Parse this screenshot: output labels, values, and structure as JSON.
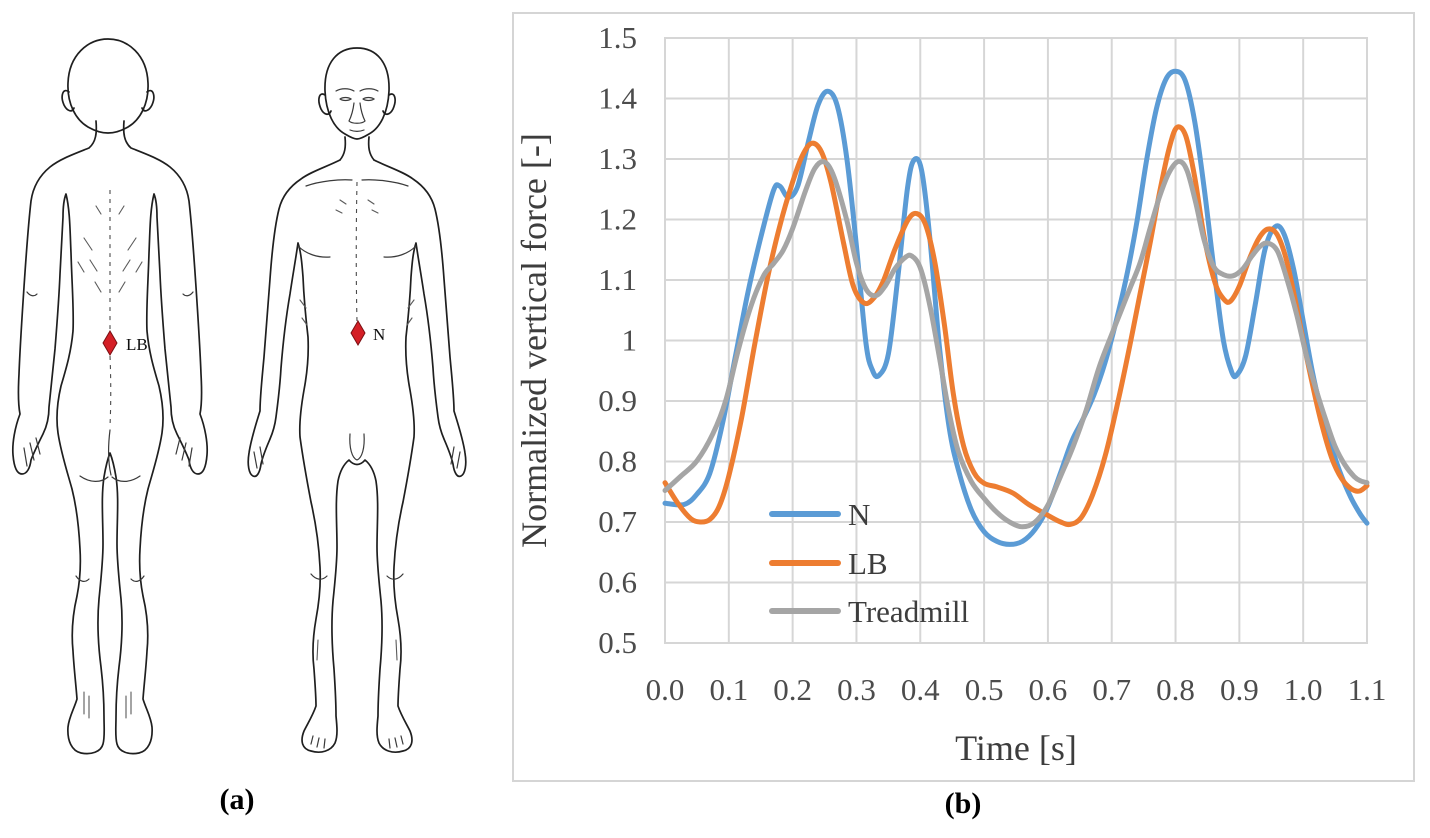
{
  "panel_a": {
    "caption": "(a)",
    "marker_color": "#d41f26",
    "back_view": {
      "marker_label": "LB"
    },
    "front_view": {
      "marker_label": "N"
    }
  },
  "panel_b": {
    "caption": "(b)"
  },
  "chart_data": {
    "type": "line",
    "title": "",
    "xlabel": "Time [s]",
    "ylabel": "Normalized vertical force [-]",
    "xlim": [
      0.0,
      1.1
    ],
    "ylim": [
      0.5,
      1.5
    ],
    "x_ticks": [
      "0.0",
      "0.1",
      "0.2",
      "0.3",
      "0.4",
      "0.5",
      "0.6",
      "0.7",
      "0.8",
      "0.9",
      "1.0",
      "1.1"
    ],
    "y_ticks": [
      "1.5",
      "1.4",
      "1.3",
      "1.2",
      "1.1",
      "1",
      "0.9",
      "0.8",
      "0.7",
      "0.6",
      "0.5"
    ],
    "grid": true,
    "grid_color": "#d6d6d6",
    "legend_position": "inside-lower-left",
    "series": [
      {
        "name": "N",
        "color": "#5B9BD5",
        "points": [
          [
            0.0,
            0.731
          ],
          [
            0.03,
            0.729
          ],
          [
            0.05,
            0.746
          ],
          [
            0.07,
            0.78
          ],
          [
            0.09,
            0.862
          ],
          [
            0.11,
            0.972
          ],
          [
            0.13,
            1.08
          ],
          [
            0.15,
            1.17
          ],
          [
            0.17,
            1.248
          ],
          [
            0.18,
            1.255
          ],
          [
            0.193,
            1.237
          ],
          [
            0.208,
            1.255
          ],
          [
            0.225,
            1.33
          ],
          [
            0.24,
            1.39
          ],
          [
            0.255,
            1.412
          ],
          [
            0.27,
            1.388
          ],
          [
            0.285,
            1.3
          ],
          [
            0.3,
            1.155
          ],
          [
            0.315,
            0.995
          ],
          [
            0.325,
            0.951
          ],
          [
            0.335,
            0.942
          ],
          [
            0.35,
            0.978
          ],
          [
            0.365,
            1.105
          ],
          [
            0.38,
            1.252
          ],
          [
            0.39,
            1.298
          ],
          [
            0.402,
            1.282
          ],
          [
            0.415,
            1.17
          ],
          [
            0.43,
            0.99
          ],
          [
            0.445,
            0.858
          ],
          [
            0.46,
            0.785
          ],
          [
            0.48,
            0.72
          ],
          [
            0.5,
            0.684
          ],
          [
            0.52,
            0.668
          ],
          [
            0.54,
            0.663
          ],
          [
            0.56,
            0.668
          ],
          [
            0.58,
            0.688
          ],
          [
            0.6,
            0.725
          ],
          [
            0.62,
            0.782
          ],
          [
            0.638,
            0.835
          ],
          [
            0.655,
            0.87
          ],
          [
            0.672,
            0.91
          ],
          [
            0.69,
            0.965
          ],
          [
            0.71,
            1.045
          ],
          [
            0.725,
            1.115
          ],
          [
            0.74,
            1.2
          ],
          [
            0.755,
            1.3
          ],
          [
            0.77,
            1.383
          ],
          [
            0.785,
            1.432
          ],
          [
            0.8,
            1.445
          ],
          [
            0.815,
            1.43
          ],
          [
            0.83,
            1.362
          ],
          [
            0.845,
            1.25
          ],
          [
            0.86,
            1.12
          ],
          [
            0.875,
            1.0
          ],
          [
            0.888,
            0.948
          ],
          [
            0.896,
            0.943
          ],
          [
            0.91,
            0.975
          ],
          [
            0.925,
            1.06
          ],
          [
            0.94,
            1.15
          ],
          [
            0.956,
            1.188
          ],
          [
            0.97,
            1.176
          ],
          [
            0.985,
            1.118
          ],
          [
            1.0,
            1.032
          ],
          [
            1.015,
            0.945
          ],
          [
            1.03,
            0.878
          ],
          [
            1.045,
            0.822
          ],
          [
            1.06,
            0.776
          ],
          [
            1.075,
            0.74
          ],
          [
            1.09,
            0.712
          ],
          [
            1.1,
            0.698
          ]
        ]
      },
      {
        "name": "LB",
        "color": "#ED7D31",
        "points": [
          [
            0.0,
            0.765
          ],
          [
            0.02,
            0.731
          ],
          [
            0.04,
            0.706
          ],
          [
            0.055,
            0.7
          ],
          [
            0.07,
            0.704
          ],
          [
            0.085,
            0.726
          ],
          [
            0.1,
            0.776
          ],
          [
            0.12,
            0.872
          ],
          [
            0.14,
            0.99
          ],
          [
            0.16,
            1.1
          ],
          [
            0.18,
            1.19
          ],
          [
            0.2,
            1.262
          ],
          [
            0.215,
            1.305
          ],
          [
            0.23,
            1.326
          ],
          [
            0.245,
            1.312
          ],
          [
            0.26,
            1.262
          ],
          [
            0.28,
            1.16
          ],
          [
            0.295,
            1.09
          ],
          [
            0.312,
            1.062
          ],
          [
            0.327,
            1.07
          ],
          [
            0.342,
            1.098
          ],
          [
            0.36,
            1.15
          ],
          [
            0.38,
            1.198
          ],
          [
            0.394,
            1.21
          ],
          [
            0.408,
            1.192
          ],
          [
            0.423,
            1.128
          ],
          [
            0.438,
            1.025
          ],
          [
            0.452,
            0.91
          ],
          [
            0.468,
            0.825
          ],
          [
            0.484,
            0.782
          ],
          [
            0.5,
            0.764
          ],
          [
            0.52,
            0.758
          ],
          [
            0.545,
            0.748
          ],
          [
            0.57,
            0.729
          ],
          [
            0.6,
            0.711
          ],
          [
            0.62,
            0.7
          ],
          [
            0.635,
            0.696
          ],
          [
            0.652,
            0.707
          ],
          [
            0.67,
            0.745
          ],
          [
            0.69,
            0.81
          ],
          [
            0.71,
            0.9
          ],
          [
            0.728,
            0.99
          ],
          [
            0.745,
            1.08
          ],
          [
            0.76,
            1.16
          ],
          [
            0.775,
            1.245
          ],
          [
            0.79,
            1.318
          ],
          [
            0.802,
            1.352
          ],
          [
            0.816,
            1.338
          ],
          [
            0.83,
            1.27
          ],
          [
            0.845,
            1.17
          ],
          [
            0.862,
            1.095
          ],
          [
            0.876,
            1.068
          ],
          [
            0.886,
            1.065
          ],
          [
            0.9,
            1.09
          ],
          [
            0.915,
            1.133
          ],
          [
            0.93,
            1.168
          ],
          [
            0.944,
            1.184
          ],
          [
            0.958,
            1.177
          ],
          [
            0.972,
            1.14
          ],
          [
            0.986,
            1.075
          ],
          [
            1.0,
            1.0
          ],
          [
            1.015,
            0.925
          ],
          [
            1.03,
            0.858
          ],
          [
            1.045,
            0.805
          ],
          [
            1.06,
            0.772
          ],
          [
            1.075,
            0.755
          ],
          [
            1.088,
            0.751
          ],
          [
            1.1,
            0.76
          ]
        ]
      },
      {
        "name": "Treadmill",
        "color": "#A5A5A5",
        "points": [
          [
            0.0,
            0.752
          ],
          [
            0.025,
            0.776
          ],
          [
            0.05,
            0.801
          ],
          [
            0.075,
            0.846
          ],
          [
            0.095,
            0.9
          ],
          [
            0.115,
            0.985
          ],
          [
            0.135,
            1.058
          ],
          [
            0.155,
            1.108
          ],
          [
            0.17,
            1.127
          ],
          [
            0.185,
            1.149
          ],
          [
            0.2,
            1.185
          ],
          [
            0.22,
            1.247
          ],
          [
            0.235,
            1.285
          ],
          [
            0.25,
            1.295
          ],
          [
            0.265,
            1.27
          ],
          [
            0.285,
            1.198
          ],
          [
            0.3,
            1.128
          ],
          [
            0.315,
            1.085
          ],
          [
            0.33,
            1.074
          ],
          [
            0.345,
            1.09
          ],
          [
            0.36,
            1.118
          ],
          [
            0.375,
            1.136
          ],
          [
            0.386,
            1.14
          ],
          [
            0.4,
            1.12
          ],
          [
            0.415,
            1.058
          ],
          [
            0.43,
            0.972
          ],
          [
            0.445,
            0.882
          ],
          [
            0.46,
            0.815
          ],
          [
            0.48,
            0.767
          ],
          [
            0.5,
            0.739
          ],
          [
            0.52,
            0.716
          ],
          [
            0.54,
            0.7
          ],
          [
            0.56,
            0.692
          ],
          [
            0.58,
            0.7
          ],
          [
            0.6,
            0.728
          ],
          [
            0.62,
            0.776
          ],
          [
            0.64,
            0.826
          ],
          [
            0.66,
            0.885
          ],
          [
            0.68,
            0.955
          ],
          [
            0.7,
            1.01
          ],
          [
            0.715,
            1.05
          ],
          [
            0.73,
            1.09
          ],
          [
            0.745,
            1.13
          ],
          [
            0.76,
            1.185
          ],
          [
            0.775,
            1.238
          ],
          [
            0.79,
            1.278
          ],
          [
            0.805,
            1.296
          ],
          [
            0.818,
            1.281
          ],
          [
            0.832,
            1.226
          ],
          [
            0.845,
            1.165
          ],
          [
            0.86,
            1.122
          ],
          [
            0.875,
            1.109
          ],
          [
            0.89,
            1.107
          ],
          [
            0.905,
            1.118
          ],
          [
            0.92,
            1.14
          ],
          [
            0.933,
            1.156
          ],
          [
            0.945,
            1.161
          ],
          [
            0.96,
            1.147
          ],
          [
            0.975,
            1.1
          ],
          [
            0.99,
            1.042
          ],
          [
            1.005,
            0.975
          ],
          [
            1.02,
            0.92
          ],
          [
            1.035,
            0.87
          ],
          [
            1.05,
            0.825
          ],
          [
            1.065,
            0.795
          ],
          [
            1.08,
            0.775
          ],
          [
            1.09,
            0.768
          ],
          [
            1.1,
            0.765
          ]
        ]
      }
    ]
  }
}
